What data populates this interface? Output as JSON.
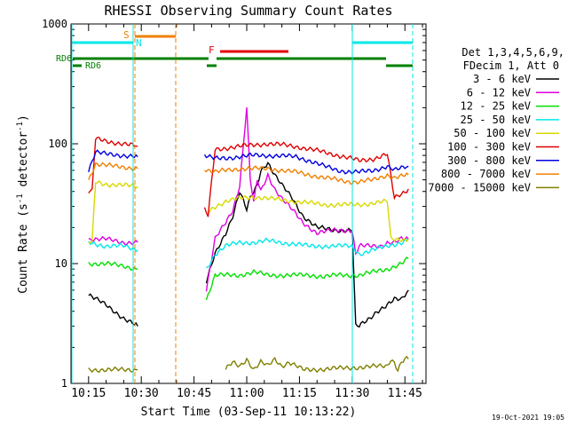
{
  "chart_data": {
    "type": "line",
    "title": "RHESSI Observing Summary Count Rates",
    "xlabel": "Start Time (03-Sep-11 10:13:22)",
    "ylabel_main": "Count Rate (s",
    "ylabel_sup": "-1",
    "ylabel_mid": " detector",
    "ylabel_end": ")",
    "yscale": "log",
    "ylim": [
      1,
      1000
    ],
    "xlim_minutes": [
      10.0,
      111.0
    ],
    "x_tick_labels": [
      "10:15",
      "10:30",
      "10:45",
      "11:00",
      "11:15",
      "11:30",
      "11:45"
    ],
    "x_tick_minutes": [
      15,
      30,
      45,
      60,
      75,
      90,
      105
    ],
    "y_tick_labels": [
      "1",
      "10",
      "100",
      "1000"
    ],
    "y_tick_values": [
      1,
      10,
      100,
      1000
    ],
    "timestamp": "19-Oct-2021 19:05",
    "legend": {
      "header1": "Det 1,3,4,5,6,9,",
      "header2": "FDecim 1, Att 0",
      "entries": [
        {
          "label": "3 - 6 keV",
          "color": "#000000"
        },
        {
          "label": "6 - 12 keV",
          "color": "#e000e0"
        },
        {
          "label": "12 - 25 keV",
          "color": "#00e000"
        },
        {
          "label": "25 - 50 keV",
          "color": "#00e8e8"
        },
        {
          "label": "50 - 100 keV",
          "color": "#d8d800"
        },
        {
          "label": "100 - 300 keV",
          "color": "#e00000"
        },
        {
          "label": "300 - 800 keV",
          "color": "#0000e0"
        },
        {
          "label": "800 - 7000 keV",
          "color": "#f08000"
        },
        {
          "label": "7000 - 15000 keV",
          "color": "#808000"
        }
      ]
    },
    "flags": {
      "S": {
        "label": "S",
        "color": "#f08000"
      },
      "N": {
        "label": "N",
        "color": "#00e8e8"
      },
      "F": {
        "label": "F",
        "color": "#e00000"
      },
      "RD6_a": {
        "label": "RD6",
        "color": "#008000"
      },
      "RD6_b": {
        "label": "RD6",
        "color": "#008000"
      }
    },
    "series": [
      {
        "name": "3 - 6 keV",
        "color": "#000000",
        "x": [
          15,
          20,
          25,
          29,
          31,
          47,
          48.5,
          51,
          54,
          56,
          58,
          60,
          61,
          63,
          64,
          66,
          68,
          70,
          73,
          76,
          80,
          85,
          90,
          91,
          92,
          95,
          97,
          100,
          102,
          104,
          106
        ],
        "y": [
          5.5,
          4.5,
          3.5,
          3,
          null,
          null,
          7,
          12,
          18,
          25,
          40,
          28,
          35,
          45,
          60,
          70,
          55,
          45,
          35,
          25,
          20,
          19,
          19,
          3,
          3,
          3.5,
          4,
          4.5,
          5,
          5,
          6
        ]
      },
      {
        "name": "6 - 12 keV",
        "color": "#e000e0",
        "x": [
          15,
          20,
          25,
          29,
          31,
          47,
          48.5,
          51,
          54,
          56,
          58,
          60,
          61,
          62,
          63,
          64,
          66,
          68,
          70,
          73,
          76,
          80,
          85,
          90,
          91,
          92,
          95,
          98,
          100,
          102,
          104,
          106
        ],
        "y": [
          16,
          16,
          15,
          15,
          null,
          null,
          6,
          16,
          22,
          28,
          45,
          200,
          50,
          32,
          50,
          40,
          55,
          42,
          35,
          28,
          22,
          18,
          19,
          19,
          12,
          14,
          14,
          14,
          15,
          15,
          16,
          16
        ]
      },
      {
        "name": "12 - 25 keV",
        "color": "#00e000",
        "x": [
          15,
          20,
          25,
          29,
          31,
          47,
          48.5,
          51,
          54,
          58,
          62,
          66,
          70,
          74,
          78,
          82,
          86,
          90,
          92,
          96,
          100,
          104,
          106
        ],
        "y": [
          10,
          10,
          9.5,
          9,
          null,
          null,
          5,
          8,
          8,
          8,
          8.5,
          8,
          8,
          8,
          8,
          7.8,
          8,
          8,
          8,
          8.5,
          9,
          10,
          11
        ]
      },
      {
        "name": "25 - 50 keV",
        "color": "#00e8e8",
        "x": [
          15,
          20,
          25,
          29,
          31,
          47,
          48.5,
          51,
          54,
          58,
          62,
          66,
          70,
          74,
          78,
          82,
          86,
          90,
          92,
          96,
          100,
          104,
          106
        ],
        "y": [
          15,
          14,
          14,
          13,
          null,
          null,
          9,
          12,
          14,
          15,
          15,
          15.5,
          15,
          14.5,
          14,
          14,
          14,
          14,
          12,
          13,
          14,
          15,
          16
        ]
      },
      {
        "name": "50 - 100 keV",
        "color": "#d8d800",
        "x": [
          15,
          16,
          17,
          20,
          25,
          29,
          31,
          47,
          48,
          49,
          51,
          54,
          58,
          62,
          66,
          70,
          74,
          78,
          82,
          86,
          90,
          92,
          96,
          100,
          101,
          102,
          106
        ],
        "y": [
          15,
          15,
          48,
          46,
          45,
          44,
          null,
          null,
          null,
          27,
          30,
          33,
          35,
          36,
          35,
          34,
          33,
          32,
          31,
          31,
          31,
          31,
          32,
          33,
          16,
          16,
          16
        ]
      },
      {
        "name": "100 - 300 keV",
        "color": "#e00000",
        "x": [
          15,
          16,
          17,
          20,
          25,
          29,
          31,
          47,
          48,
          49,
          51,
          54,
          58,
          62,
          66,
          70,
          74,
          78,
          82,
          86,
          90,
          92,
          96,
          100,
          102,
          104,
          106
        ],
        "y": [
          40,
          40,
          110,
          105,
          100,
          95,
          null,
          null,
          28,
          25,
          90,
          92,
          95,
          98,
          100,
          98,
          95,
          90,
          85,
          80,
          75,
          72,
          75,
          82,
          35,
          38,
          42
        ]
      },
      {
        "name": "300 - 800 keV",
        "color": "#0000e0",
        "x": [
          15,
          17,
          20,
          25,
          29,
          31,
          47,
          48,
          49,
          51,
          54,
          58,
          62,
          66,
          70,
          74,
          78,
          82,
          86,
          90,
          92,
          96,
          100,
          102,
          106
        ],
        "y": [
          60,
          85,
          82,
          80,
          78,
          null,
          null,
          80,
          78,
          75,
          76,
          78,
          80,
          80,
          79,
          78,
          72,
          65,
          60,
          58,
          58,
          60,
          65,
          60,
          65
        ]
      },
      {
        "name": "800 - 7000 keV",
        "color": "#f08000",
        "x": [
          15,
          17,
          20,
          25,
          29,
          31,
          47,
          48,
          49,
          51,
          54,
          58,
          62,
          66,
          70,
          74,
          78,
          82,
          86,
          90,
          92,
          96,
          100,
          102,
          106
        ],
        "y": [
          50,
          68,
          66,
          64,
          62,
          null,
          null,
          62,
          60,
          58,
          60,
          62,
          62,
          62,
          60,
          58,
          55,
          52,
          50,
          48,
          48,
          50,
          55,
          52,
          55
        ]
      },
      {
        "name": "7000 - 15000 keV",
        "color": "#808000",
        "x": [
          15,
          20,
          25,
          29,
          31,
          54,
          56,
          58,
          60,
          62,
          64,
          66,
          68,
          70,
          72,
          74,
          76,
          78,
          100,
          101,
          102,
          103,
          104,
          105,
          106
        ],
        "y": [
          1.3,
          1.3,
          1.3,
          1.3,
          null,
          1.3,
          1.5,
          1.4,
          1.6,
          1.3,
          1.5,
          1.4,
          1.6,
          1.4,
          1.5,
          1.4,
          1.3,
          1.3,
          1.4,
          1.6,
          1.5,
          1.3,
          1.5,
          1.6,
          1.6
        ]
      }
    ]
  }
}
